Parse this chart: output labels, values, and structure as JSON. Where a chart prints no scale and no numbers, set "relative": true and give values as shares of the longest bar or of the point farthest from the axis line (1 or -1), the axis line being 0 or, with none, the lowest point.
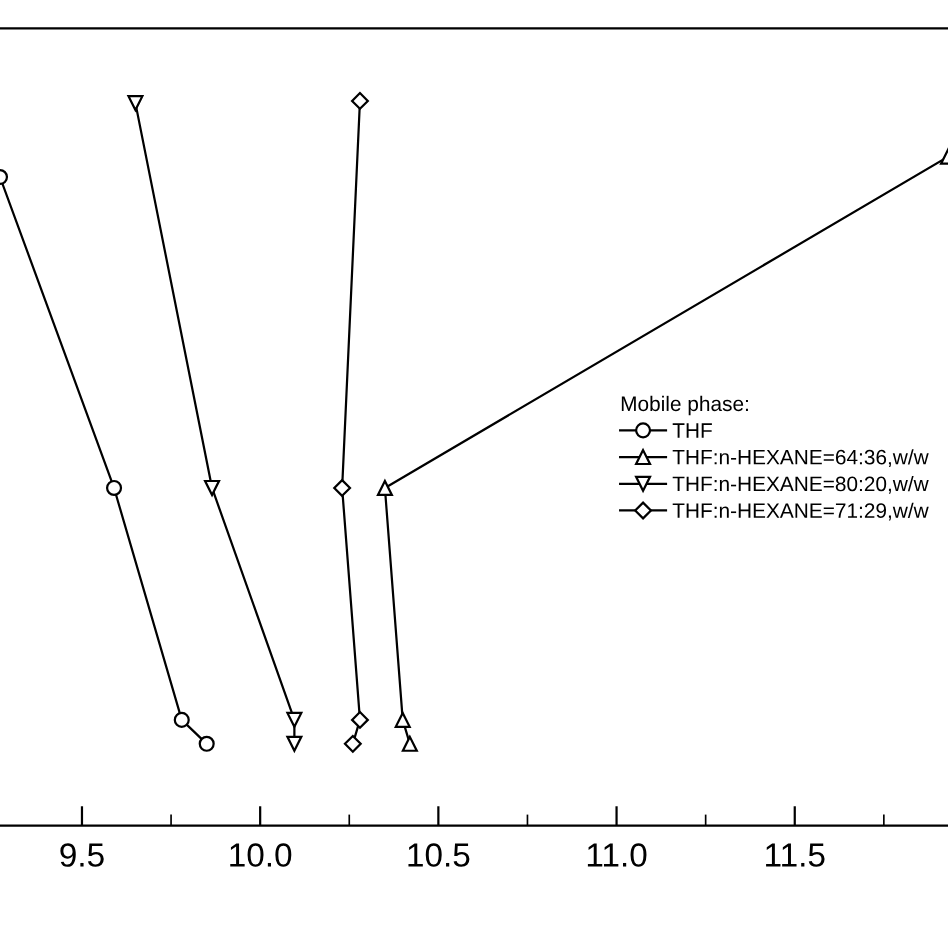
{
  "chart_data": {
    "type": "line",
    "relative": true,
    "legend_title": "Mobile phase:",
    "legend": "right",
    "grid": false,
    "xlim": [
      9.27,
      11.93
    ],
    "xticks": [
      {
        "value": 9.5,
        "label": "9.5"
      },
      {
        "value": 10.0,
        "label": "10.0"
      },
      {
        "value": 10.5,
        "label": "10.5"
      },
      {
        "value": 11.0,
        "label": "11.0"
      },
      {
        "value": 11.5,
        "label": "11.5"
      }
    ],
    "series": [
      {
        "name": "THF",
        "color": "#000000",
        "marker": "circle",
        "x": [
          9.27,
          9.59,
          9.78,
          9.85
        ],
        "values": [
          0.895,
          0.466,
          0.146,
          0.113
        ]
      },
      {
        "name": "THF:n-HEXANE=64:36,w/w",
        "color": "#000000",
        "marker": "triangle",
        "x": [
          11.93,
          10.35,
          10.4,
          10.42
        ],
        "values": [
          0.923,
          0.466,
          0.146,
          0.113
        ]
      },
      {
        "name": "THF:n-HEXANE=80:20,w/w",
        "color": "#000000",
        "marker": "triangle_down",
        "x": [
          9.65,
          9.865,
          10.096,
          10.096
        ],
        "values": [
          0.997,
          0.466,
          0.146,
          0.113
        ]
      },
      {
        "name": "THF:n-HEXANE=71:29,w/w",
        "color": "#000000",
        "marker": "diamond",
        "x": [
          10.28,
          10.23,
          10.28,
          10.26
        ],
        "values": [
          1.0,
          0.466,
          0.146,
          0.113
        ]
      }
    ]
  }
}
